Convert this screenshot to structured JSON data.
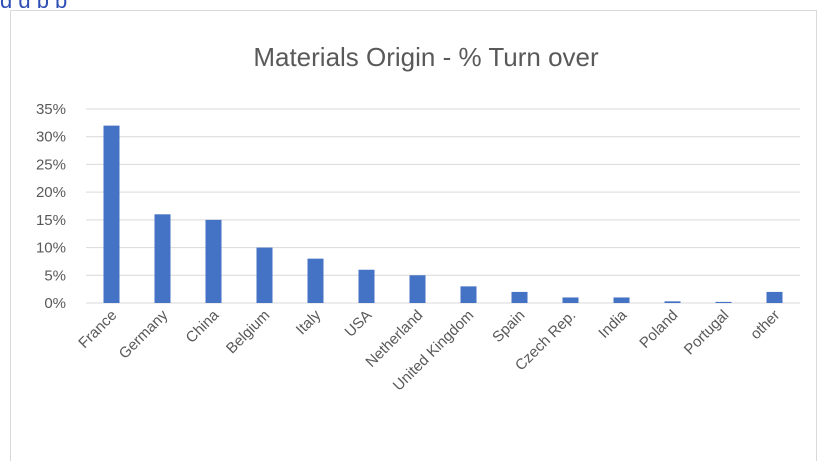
{
  "header_fragment": "g                                            g                    p                   p",
  "chart_data": {
    "type": "bar",
    "title": "Materials Origin - % Turn over",
    "xlabel": "",
    "ylabel": "",
    "ylim": [
      0,
      0.35
    ],
    "yticks": [
      "0%",
      "5%",
      "10%",
      "15%",
      "20%",
      "25%",
      "30%",
      "35%"
    ],
    "grid": true,
    "legend": "none",
    "bar_color": "#4472c4",
    "categories": [
      "France",
      "Germany",
      "China",
      "Belgium",
      "Italy",
      "USA",
      "Netherland",
      "United Kingdom",
      "Spain",
      "Czech Rep.",
      "India",
      "Poland",
      "Portugal",
      "other"
    ],
    "values": [
      0.32,
      0.16,
      0.15,
      0.1,
      0.08,
      0.06,
      0.05,
      0.03,
      0.02,
      0.01,
      0.01,
      0.003,
      0.002,
      0.02
    ]
  }
}
